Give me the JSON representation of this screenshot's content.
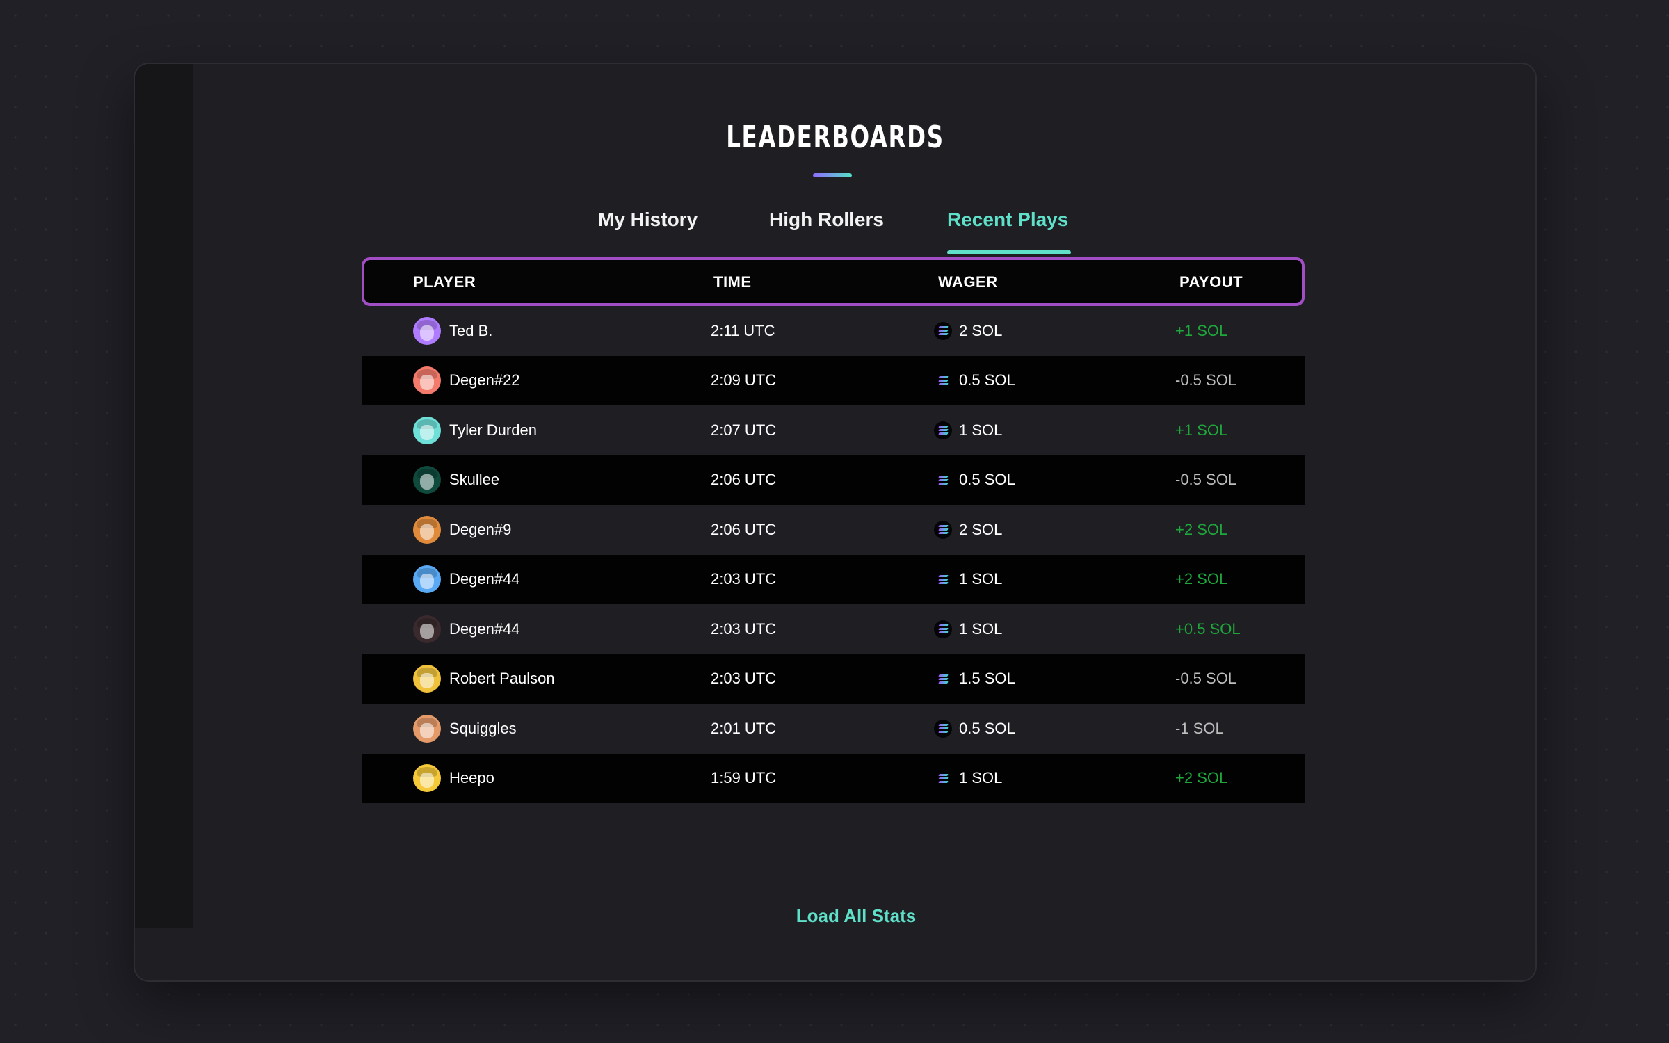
{
  "page": {
    "title": "LEADERBOARDS",
    "load_all_label": "Load All Stats"
  },
  "tabs": [
    {
      "label": "My History",
      "active": false
    },
    {
      "label": "High Rollers",
      "active": false
    },
    {
      "label": "Recent Plays",
      "active": true
    }
  ],
  "columns": {
    "player": "PLAYER",
    "time": "TIME",
    "wager": "WAGER",
    "payout": "PAYOUT"
  },
  "rows": [
    {
      "player": "Ted B.",
      "time": "2:11 UTC",
      "wager": "2 SOL",
      "payout": "+1 SOL",
      "result": "win",
      "avatar_color": "#b07cff"
    },
    {
      "player": "Degen#22",
      "time": "2:09 UTC",
      "wager": "0.5 SOL",
      "payout": "-0.5 SOL",
      "result": "lose",
      "avatar_color": "#f47a6c"
    },
    {
      "player": "Tyler Durden",
      "time": "2:07 UTC",
      "wager": "1 SOL",
      "payout": "+1 SOL",
      "result": "win",
      "avatar_color": "#6fe0d8"
    },
    {
      "player": "Skullee",
      "time": "2:06 UTC",
      "wager": "0.5 SOL",
      "payout": "-0.5 SOL",
      "result": "lose",
      "avatar_color": "#0f4a3c"
    },
    {
      "player": "Degen#9",
      "time": "2:06 UTC",
      "wager": "2 SOL",
      "payout": "+2 SOL",
      "result": "win",
      "avatar_color": "#e08a3c"
    },
    {
      "player": "Degen#44",
      "time": "2:03 UTC",
      "wager": "1 SOL",
      "payout": "+2 SOL",
      "result": "win",
      "avatar_color": "#5aa9f5"
    },
    {
      "player": "Degen#44",
      "time": "2:03 UTC",
      "wager": "1 SOL",
      "payout": "+0.5 SOL",
      "result": "win",
      "avatar_color": "#3a2a2e"
    },
    {
      "player": "Robert Paulson",
      "time": "2:03 UTC",
      "wager": "1.5 SOL",
      "payout": "-0.5 SOL",
      "result": "lose",
      "avatar_color": "#f0c23c"
    },
    {
      "player": "Squiggles",
      "time": "2:01 UTC",
      "wager": "0.5 SOL",
      "payout": "-1 SOL",
      "result": "lose",
      "avatar_color": "#e59a6a"
    },
    {
      "player": "Heepo",
      "time": "1:59 UTC",
      "wager": "1 SOL",
      "payout": "+2 SOL",
      "result": "win",
      "avatar_color": "#f5c93a"
    }
  ],
  "colors": {
    "accent": "#5fe0c8",
    "header_border": "#a14ec4",
    "win": "#1ea83c",
    "lose": "#bdbdbd"
  }
}
